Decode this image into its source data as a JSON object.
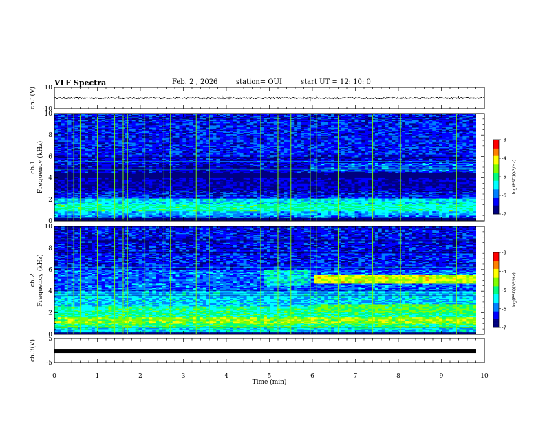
{
  "header": {
    "title": "VLF Spectra",
    "date": "Feb. 2 , 2026",
    "station": "station= OUI",
    "start_ut": "start UT =   12: 10: 0"
  },
  "chart_data": [
    {
      "type": "line",
      "name": "ch1-waveform",
      "ylabel": "ch.1(V)",
      "ylim": [
        -10,
        10
      ],
      "ytick_labels": [
        "10",
        "-10"
      ],
      "xlim": [
        0,
        10
      ],
      "baseline_v": 0,
      "spikes": [
        {
          "t": 1.5,
          "v": 2
        },
        {
          "t": 3.9,
          "v": 2.5
        },
        {
          "t": 5.95,
          "v": -3
        },
        {
          "t": 6.1,
          "v": 2.5
        },
        {
          "t": 9.4,
          "v": 2
        }
      ]
    },
    {
      "type": "heatmap",
      "name": "ch1-spectrogram",
      "ylabel": "ch.1\nFrequency (kHz)",
      "ylim": [
        0,
        10
      ],
      "xlim": [
        0,
        10
      ],
      "ytick_labels": [
        "0",
        "2",
        "4",
        "6",
        "8",
        "10"
      ],
      "colorbar": {
        "label": "log(PSD)(V²/Hz)",
        "range": [
          -7,
          -3
        ],
        "tick_labels": [
          "-3",
          "-4",
          "-5",
          "-6",
          "-7"
        ]
      },
      "bands": [
        {
          "f": [
            0,
            0.3
          ],
          "value": -7
        },
        {
          "f": [
            0.3,
            0.55
          ],
          "value": -6.0
        },
        {
          "f": [
            0.55,
            0.9
          ],
          "value": -5.7
        },
        {
          "f": [
            0.9,
            1.6
          ],
          "value": -5.2
        },
        {
          "f": [
            1.6,
            2.1
          ],
          "value": -5.5
        },
        {
          "f": [
            2.1,
            2.8
          ],
          "value": -6.3
        },
        {
          "f": [
            2.8,
            4.0
          ],
          "value": -6.6
        },
        {
          "f": [
            4.0,
            4.5
          ],
          "value": -7.0
        },
        {
          "f": [
            4.5,
            6.0
          ],
          "value": -6.5
        },
        {
          "f": [
            6.0,
            10.0
          ],
          "value": -6.3
        }
      ],
      "events": [
        {
          "t_start": 6.1,
          "t_end": 10,
          "f": [
            4.6,
            5.4
          ],
          "value": -6.0
        }
      ],
      "vertical_bursts_t": [
        0.3,
        0.45,
        0.6,
        1.0,
        1.4,
        1.6,
        1.7,
        2.1,
        2.55,
        2.7,
        3.3,
        3.6,
        4.8,
        5.2,
        5.5,
        5.95,
        6.1,
        6.6,
        7.4,
        8.05,
        9.35
      ]
    },
    {
      "type": "heatmap",
      "name": "ch2-spectrogram",
      "ylabel": "ch.2\nFrequency (kHz)",
      "ylim": [
        0,
        10
      ],
      "xlim": [
        0,
        10
      ],
      "ytick_labels": [
        "0",
        "2",
        "4",
        "6",
        "8",
        "10"
      ],
      "colorbar": {
        "label": "log(PSD)(V²/Hz)",
        "range": [
          -7,
          -3
        ],
        "tick_labels": [
          "-3",
          "-4",
          "-5",
          "-6",
          "-7"
        ]
      },
      "bands": [
        {
          "f": [
            0,
            0.25
          ],
          "value": -7
        },
        {
          "f": [
            0.25,
            0.6
          ],
          "value": -5.5
        },
        {
          "f": [
            0.6,
            1.0
          ],
          "value": -5.0
        },
        {
          "f": [
            1.0,
            1.6
          ],
          "value": -4.5
        },
        {
          "f": [
            1.6,
            2.6
          ],
          "value": -5.1
        },
        {
          "f": [
            2.6,
            4.0
          ],
          "value": -5.6
        },
        {
          "f": [
            4.0,
            6.0
          ],
          "value": -6.0
        },
        {
          "f": [
            6.0,
            7.5
          ],
          "value": -6.3
        },
        {
          "f": [
            7.5,
            10.0
          ],
          "value": -6.4
        }
      ],
      "events": [
        {
          "t_start": 6.15,
          "t_end": 10,
          "f": [
            4.7,
            5.5
          ],
          "value": -4.3
        },
        {
          "t_start": 6.15,
          "t_end": 10,
          "f": [
            2.0,
            2.8
          ],
          "value": -4.8
        },
        {
          "t_start": 4.95,
          "t_end": 6.1,
          "f": [
            4.5,
            6.0
          ],
          "value": -5.4
        }
      ],
      "vertical_bursts_t": [
        0.3,
        0.45,
        0.6,
        1.0,
        1.4,
        1.6,
        1.7,
        2.1,
        2.55,
        2.7,
        3.3,
        3.6,
        4.8,
        5.2,
        5.5,
        5.95,
        6.1,
        6.6,
        7.4,
        8.05,
        9.35
      ]
    },
    {
      "type": "line",
      "name": "ch3-waveform",
      "ylabel": "ch.3(V)",
      "ylim": [
        -5,
        5
      ],
      "ytick_labels": [
        "5",
        "-5"
      ],
      "xlim": [
        0,
        10
      ],
      "baseline_v": -0.3
    }
  ],
  "x_axis": {
    "label": "Time (min)",
    "tick_labels": [
      "0",
      "1",
      "2",
      "3",
      "4",
      "5",
      "6",
      "7",
      "8",
      "9",
      "10"
    ]
  },
  "colormap": [
    "#000080",
    "#0000ff",
    "#0080ff",
    "#00ffff",
    "#00ff80",
    "#80ff00",
    "#ffff00",
    "#ff8000",
    "#ff0000",
    "#ffffff"
  ]
}
